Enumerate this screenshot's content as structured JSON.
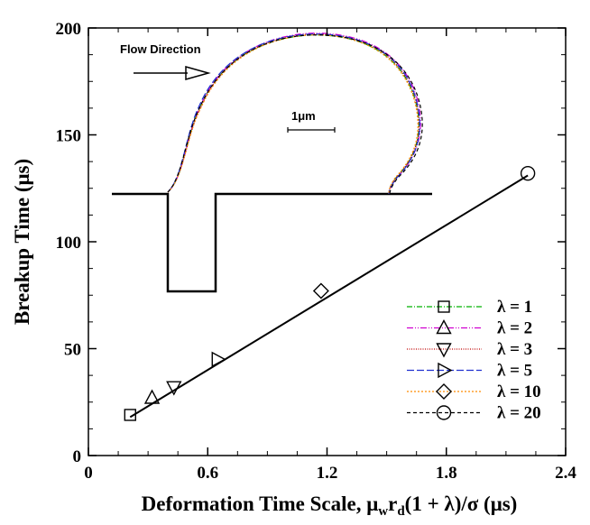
{
  "chart_data": {
    "type": "scatter",
    "title": "",
    "xlabel": "Deformation Time Scale, μ",
    "xlabel_sub": "w",
    "xlabel_mid": "r",
    "xlabel_sub2": "d",
    "xlabel_tail": "(1 + λ)/σ (μs)",
    "ylabel": "Breakup Time (μs)",
    "xlim": [
      0,
      2.4
    ],
    "ylim": [
      0,
      200
    ],
    "x_ticks": [
      "0",
      "0.6",
      "1.2",
      "1.8",
      "2.4"
    ],
    "y_ticks": [
      "0",
      "50",
      "100",
      "150",
      "200"
    ],
    "series": [
      {
        "name": "λ = 1",
        "marker": "square",
        "x": 0.21,
        "y": 19,
        "color": "#00b000",
        "dash": "6,2,1,2"
      },
      {
        "name": "λ = 2",
        "marker": "triangle-up",
        "x": 0.32,
        "y": 27,
        "color": "#d000d0",
        "dash": "7,2,1,2,1,2"
      },
      {
        "name": "λ = 3",
        "marker": "triangle-down",
        "x": 0.43,
        "y": 32,
        "color": "#c00000",
        "dash": "1,1.5"
      },
      {
        "name": "λ = 5",
        "marker": "triangle-right",
        "x": 0.65,
        "y": 45,
        "color": "#2030d0",
        "dash": "8,3"
      },
      {
        "name": "λ = 10",
        "marker": "diamond",
        "x": 1.17,
        "y": 77,
        "color": "#ff8c00",
        "dash": "2,2"
      },
      {
        "name": "λ = 20",
        "marker": "circle",
        "x": 2.21,
        "y": 132,
        "color": "#000000",
        "dash": "4,3"
      }
    ],
    "fit_line": {
      "x": [
        0.21,
        2.21
      ],
      "y": [
        18,
        131
      ]
    },
    "legend_position": "bottom-right",
    "annotations": {
      "flow_direction": "Flow Direction",
      "scale_bar": "1μm"
    }
  }
}
